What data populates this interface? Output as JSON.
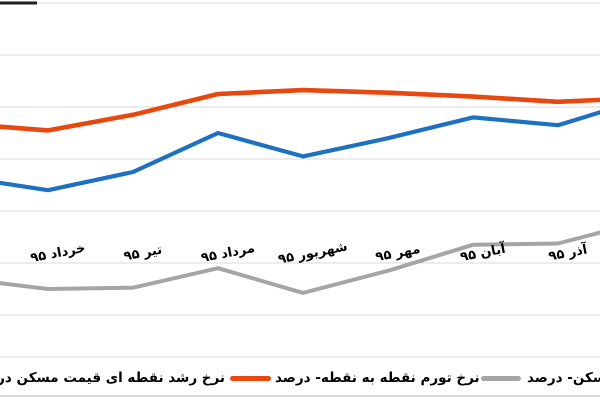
{
  "chart_data": {
    "type": "line",
    "cropped": "chart is cropped on all four sides; no title or y-axis tick labels visible",
    "categories": [
      "",
      "خرداد ۹۵",
      "تیر ۹۵",
      "مرداد ۹۵",
      "شهریور ۹۵",
      "مهر ۹۵",
      "آبان ۹۵",
      "آذر ۹۵",
      ""
    ],
    "x_label_rotation_deg": -11,
    "grid": "horizontal gridlines only, step = 2 units, baseline 0 at the 6th gridline",
    "yaxis_visible": false,
    "values_note": "values in percent, estimated from gridline spacing (first and last points cut by frame edges)",
    "series": [
      {
        "id": "housing-point-growth",
        "name": "نرخ رشد نقطه ای قیمت مسکن در",
        "color": "#1E70C1",
        "values": [
          3.3,
          2.8,
          3.5,
          5.0,
          4.1,
          4.8,
          5.6,
          5.3,
          6.3
        ]
      },
      {
        "id": "point-to-point-inflation",
        "name": "نرخ تورم نقطه به نقطه- درصد",
        "color": "#E8470E",
        "values": [
          5.35,
          5.1,
          5.7,
          6.5,
          6.65,
          6.55,
          6.4,
          6.2,
          6.35
        ]
      },
      {
        "id": "housing-percent",
        "name": "مسکن- درصد",
        "color": "#A5A5A5",
        "values": [
          -0.6,
          -1.0,
          -0.95,
          -0.2,
          -1.15,
          -0.3,
          0.7,
          0.75,
          1.6
        ]
      }
    ]
  },
  "legend": {
    "position": "bottom",
    "entries": [
      {
        "label": "نرخ رشد نقطه ای قیمت مسکن در",
        "marker": "cropped out of frame at left",
        "cropped": "left"
      },
      {
        "label": "نرخ تورم نقطه به نقطه- درصد",
        "marker_color": "#E8470E"
      },
      {
        "label": "مسکن- درصد",
        "marker_color": "#A5A5A5",
        "cropped": "right"
      }
    ]
  },
  "colors": {
    "background": "#FFFFFF",
    "gridline": "#D9D9D9",
    "text": "#000000",
    "border_fragment": "#1F1F1F",
    "bottom_border": "#CCCCCC"
  }
}
